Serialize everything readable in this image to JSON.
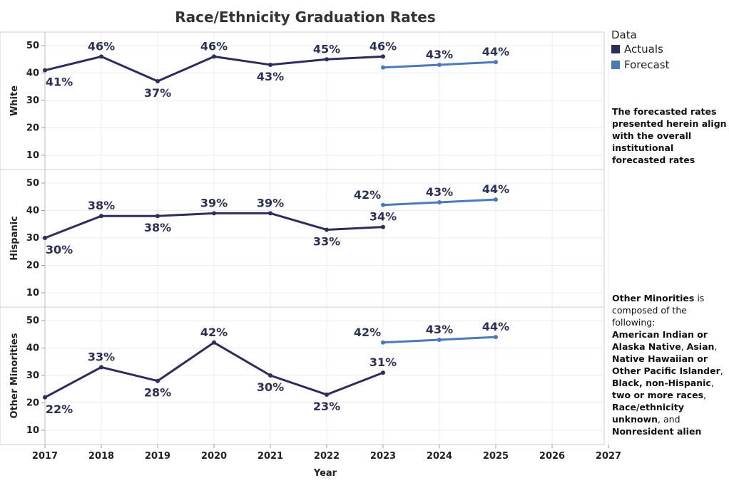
{
  "chart_data": {
    "type": "line",
    "title": "Race/Ethnicity Graduation Rates",
    "xlabel": "Year",
    "x_ticks": [
      "2017",
      "2018",
      "2019",
      "2020",
      "2021",
      "2022",
      "2023",
      "2024",
      "2025",
      "2026",
      "2027"
    ],
    "xlim": [
      2017,
      2027
    ],
    "ylim": [
      5,
      53
    ],
    "y_ticks": [
      10,
      20,
      30,
      40,
      50
    ],
    "legend": {
      "title": "Data",
      "placement": "top-right",
      "items": [
        {
          "name": "Actuals",
          "color": "#2b2d5c"
        },
        {
          "name": "Forecast",
          "color": "#4a7ab8"
        }
      ]
    },
    "panels": [
      {
        "name": "White",
        "actuals": {
          "x": [
            2017,
            2018,
            2019,
            2020,
            2021,
            2022,
            2023
          ],
          "values": [
            41,
            46,
            37,
            46,
            43,
            45,
            46
          ],
          "labels": [
            "41%",
            "46%",
            "37%",
            "46%",
            "43%",
            "45%",
            "46%"
          ]
        },
        "forecast": {
          "x": [
            2023,
            2024,
            2025
          ],
          "values": [
            42,
            43,
            44
          ],
          "labels": [
            "",
            "43%",
            "44%"
          ]
        }
      },
      {
        "name": "Hispanic",
        "actuals": {
          "x": [
            2017,
            2018,
            2019,
            2020,
            2021,
            2022,
            2023
          ],
          "values": [
            30,
            38,
            38,
            39,
            39,
            33,
            34
          ],
          "labels": [
            "30%",
            "38%",
            "38%",
            "39%",
            "39%",
            "33%",
            "34%"
          ]
        },
        "forecast": {
          "x": [
            2023,
            2024,
            2025
          ],
          "values": [
            42,
            43,
            44
          ],
          "labels": [
            "42%",
            "43%",
            "44%"
          ]
        }
      },
      {
        "name": "Other Minorities",
        "actuals": {
          "x": [
            2017,
            2018,
            2019,
            2020,
            2021,
            2022,
            2023
          ],
          "values": [
            22,
            33,
            28,
            42,
            30,
            23,
            31
          ],
          "labels": [
            "22%",
            "33%",
            "28%",
            "42%",
            "30%",
            "23%",
            "31%"
          ]
        },
        "forecast": {
          "x": [
            2023,
            2024,
            2025
          ],
          "values": [
            42,
            43,
            44
          ],
          "labels": [
            "42%",
            "43%",
            "44%"
          ]
        }
      }
    ]
  },
  "notes": {
    "forecast_note": "The forecasted rates presented herein align with the overall institutional forecasted rates",
    "minorities": {
      "lead": "Other Minorities",
      "intro": " is composed of the following:",
      "g1": "American Indian or Alaska Native",
      "s1": ", ",
      "g2": "Asian",
      "s2": ", ",
      "g3": "Native Hawaiian or Other Pacific Islander",
      "s3": ", ",
      "g4": "Black, non-Hispanic",
      "s4": ", ",
      "g5": "two or more races",
      "s5": ", ",
      "g6": "Race/ethnicity unknown",
      "s6": ", and ",
      "g7": "Nonresident alien"
    }
  }
}
